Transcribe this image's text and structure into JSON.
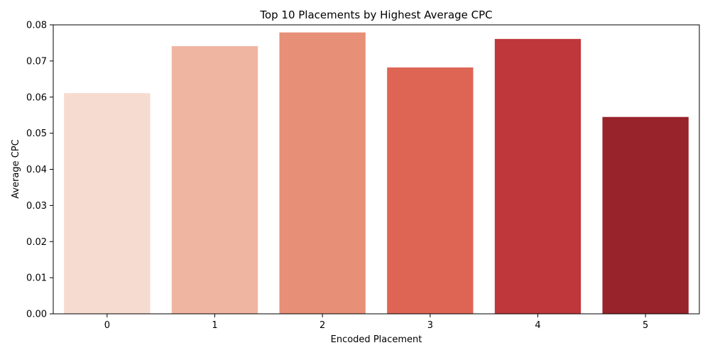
{
  "chart_data": {
    "type": "bar",
    "title": "Top 10 Placements by Highest Average CPC",
    "xlabel": "Encoded Placement",
    "ylabel": "Average CPC",
    "categories": [
      "0",
      "1",
      "2",
      "3",
      "4",
      "5"
    ],
    "values": [
      0.0611,
      0.0741,
      0.0779,
      0.0682,
      0.0761,
      0.0545
    ],
    "colors": [
      "#f6dbd0",
      "#f0b5a1",
      "#e78f77",
      "#de6554",
      "#bf373a",
      "#99232a"
    ],
    "ylim": [
      0,
      0.08
    ],
    "yticks": [
      "0.00",
      "0.01",
      "0.02",
      "0.03",
      "0.04",
      "0.05",
      "0.06",
      "0.07",
      "0.08"
    ],
    "grid": false,
    "legend": "none"
  }
}
